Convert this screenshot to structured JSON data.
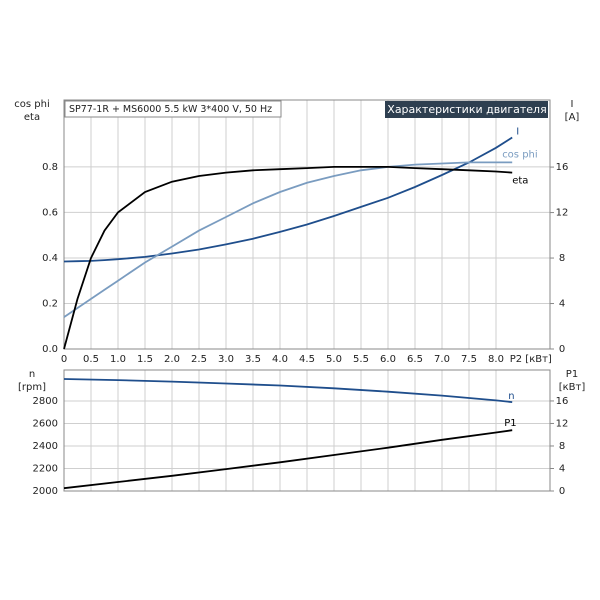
{
  "chart_data": [
    {
      "type": "line",
      "title": "Характеристики двигателя",
      "subtitle": "SP77-1R + MS6000  5.5 kW  3*400 V, 50 Hz",
      "ylabel": [
        "cos phi",
        "eta"
      ],
      "y2label": [
        "I",
        "[A]"
      ],
      "xlabel": "P2 [кВт]",
      "xlim": [
        0,
        9
      ],
      "xticks": [
        0,
        0.5,
        {
          "value": 1,
          "label": "1.0"
        },
        1.5,
        {
          "value": 2,
          "label": "2.0"
        },
        2.5,
        {
          "value": 3,
          "label": "3.0"
        },
        3.5,
        {
          "value": 4,
          "label": "4.0"
        },
        4.5,
        {
          "value": 5,
          "label": "5.0"
        },
        5.5,
        {
          "value": 6,
          "label": "6.0"
        },
        6.5,
        {
          "value": 7,
          "label": "7.0"
        },
        7.5,
        {
          "value": 8,
          "label": "8.0"
        }
      ],
      "ylim": [
        0,
        1.094
      ],
      "yticks": [
        {
          "value": 0,
          "label": "0.0"
        },
        0.2,
        0.4,
        0.6,
        0.8
      ],
      "y2lim": [
        0,
        21.9
      ],
      "y2ticks": [
        0,
        4,
        8,
        12,
        16
      ],
      "grid": true,
      "x": [
        0,
        0.25,
        0.5,
        0.75,
        1,
        1.5,
        2,
        2.5,
        3,
        3.5,
        4,
        4.5,
        5,
        5.5,
        6,
        6.5,
        7,
        7.5,
        8,
        8.3
      ],
      "series": [
        {
          "name": "I",
          "color": "#1f4e8c",
          "axis": "y2",
          "values": [
            7.7,
            7.72,
            7.75,
            7.82,
            7.9,
            8.1,
            8.4,
            8.75,
            9.2,
            9.7,
            10.3,
            10.95,
            11.7,
            12.5,
            13.3,
            14.25,
            15.3,
            16.4,
            17.7,
            18.6
          ]
        },
        {
          "name": "cos phi",
          "color": "#7a9cc0",
          "values": [
            0.14,
            0.18,
            0.22,
            0.26,
            0.3,
            0.38,
            0.45,
            0.52,
            0.58,
            0.64,
            0.69,
            0.73,
            0.76,
            0.785,
            0.8,
            0.81,
            0.815,
            0.82,
            0.82,
            0.82
          ]
        },
        {
          "name": "eta",
          "color": "#000000",
          "values": [
            0,
            0.22,
            0.4,
            0.52,
            0.6,
            0.69,
            0.735,
            0.76,
            0.775,
            0.785,
            0.79,
            0.795,
            0.8,
            0.8,
            0.8,
            0.795,
            0.79,
            0.785,
            0.78,
            0.775
          ]
        }
      ]
    },
    {
      "type": "line",
      "ylabel": [
        "n",
        "[rpm]"
      ],
      "y2label": [
        "P1",
        "[кВт]"
      ],
      "xlim": [
        0,
        9
      ],
      "ylim": [
        2000,
        3075
      ],
      "yticks": [
        2000,
        2200,
        2400,
        2600,
        2800
      ],
      "y2lim": [
        0,
        21.5
      ],
      "y2ticks": [
        0,
        4,
        8,
        12,
        16
      ],
      "grid": true,
      "x": [
        0,
        1,
        2,
        3,
        4,
        5,
        6,
        7,
        8,
        8.3
      ],
      "series": [
        {
          "name": "n",
          "color": "#1f4e8c",
          "values": [
            2995,
            2985,
            2972,
            2955,
            2937,
            2912,
            2882,
            2848,
            2805,
            2790
          ]
        },
        {
          "name": "P1",
          "color": "#000000",
          "axis": "y2",
          "values": [
            0.5,
            1.6,
            2.7,
            3.9,
            5.1,
            6.4,
            7.7,
            9.1,
            10.4,
            10.8
          ]
        }
      ]
    }
  ]
}
